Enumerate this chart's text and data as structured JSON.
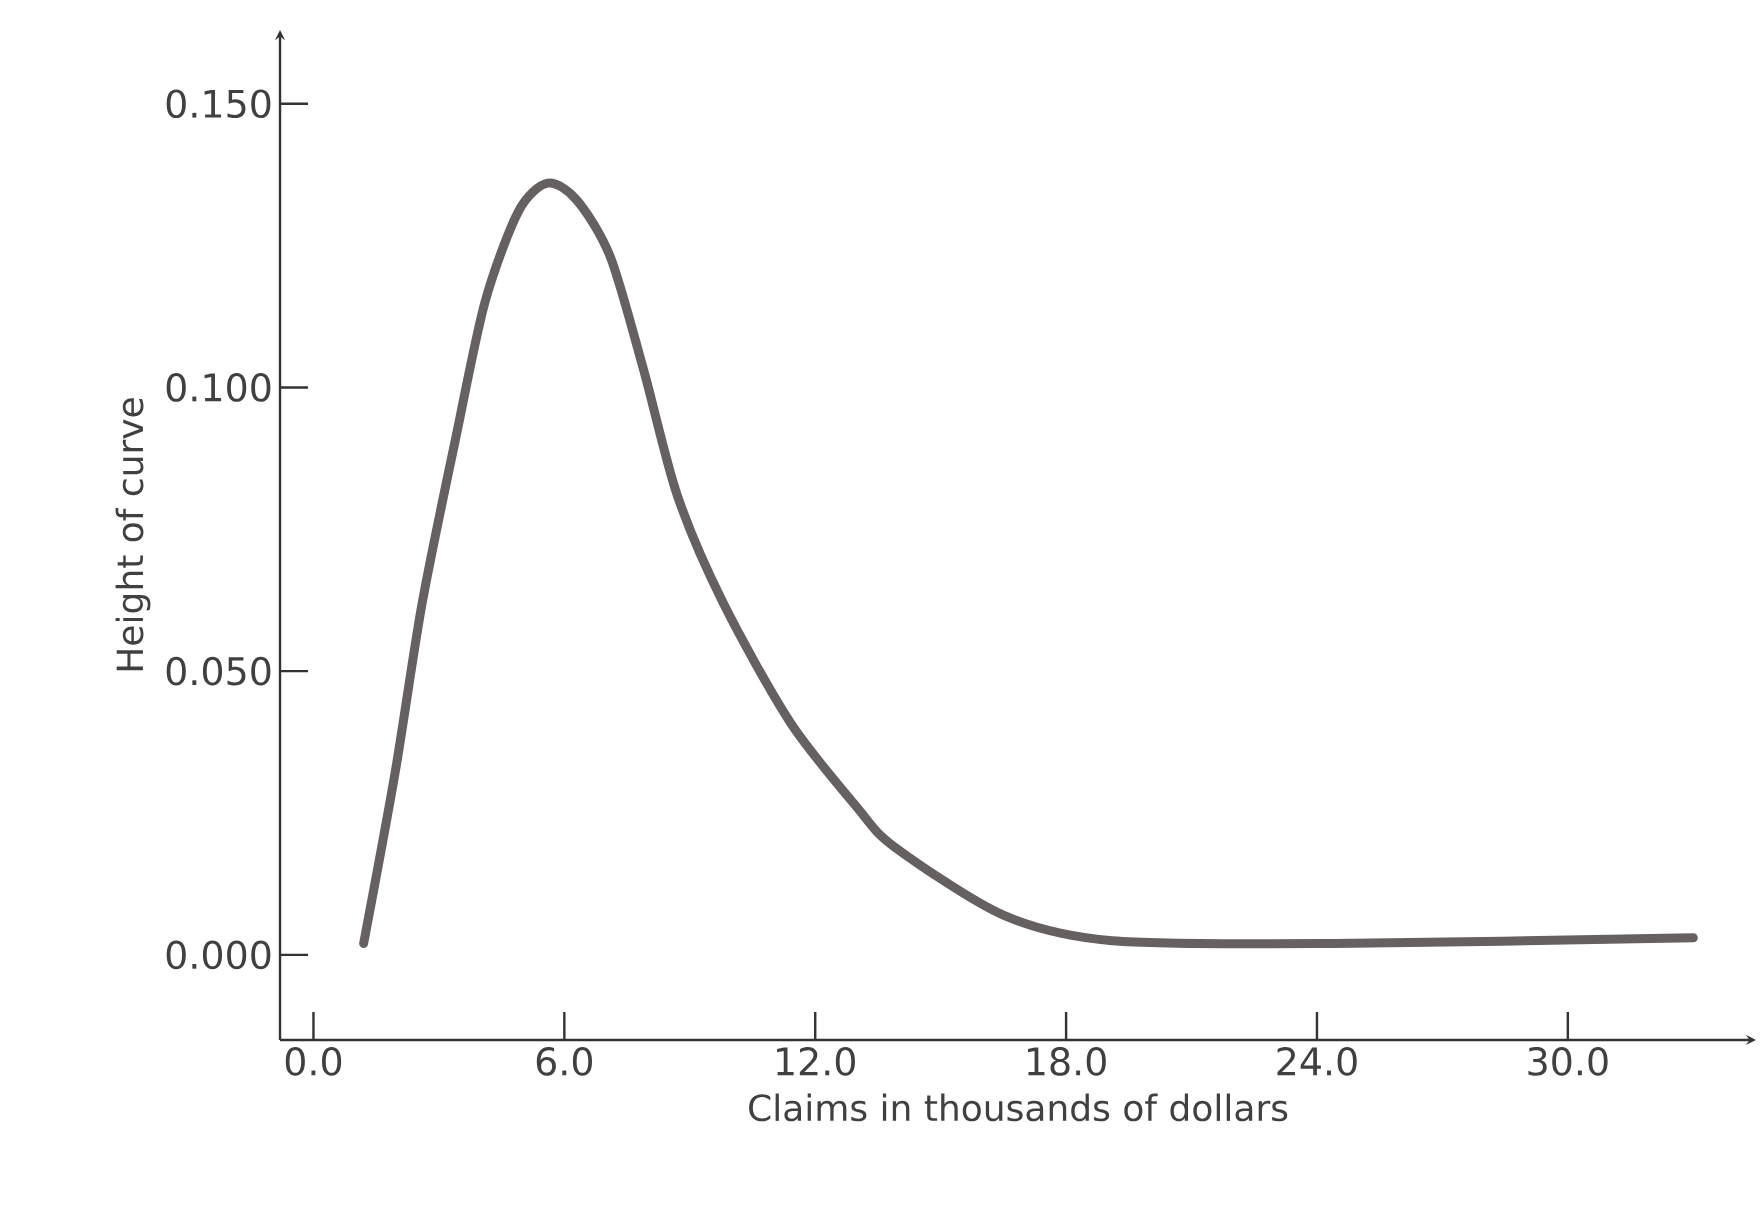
{
  "chart_data": {
    "type": "line",
    "xlabel": "Claims in thousands of dollars",
    "ylabel": "Height of curve",
    "x": [
      1.2,
      1.95,
      2.6,
      3.4,
      4.1,
      4.9,
      5.6,
      6.3,
      7.1,
      7.9,
      8.7,
      9.8,
      11.4,
      13.0,
      13.9,
      16.5,
      19.1,
      24.4,
      33.0
    ],
    "series": [
      {
        "color": "#666060",
        "values": [
          0.002,
          0.032,
          0.062,
          0.091,
          0.115,
          0.131,
          0.136,
          0.133,
          0.123,
          0.103,
          0.081,
          0.062,
          0.041,
          0.026,
          0.019,
          0.007,
          0.0025,
          0.002,
          0.003
        ]
      }
    ],
    "xlim": [
      -0.8,
      34.5
    ],
    "ylim": [
      -0.015,
      0.163
    ],
    "xticks": [
      {
        "value": 0,
        "label": "0.0"
      },
      {
        "value": 6,
        "label": "6.0"
      },
      {
        "value": 12,
        "label": "12.0"
      },
      {
        "value": 18,
        "label": "18.0"
      },
      {
        "value": 24,
        "label": "24.0"
      },
      {
        "value": 30,
        "label": "30.0"
      }
    ],
    "yticks": [
      {
        "value": 0,
        "label": "0.000"
      },
      {
        "value": 0.05,
        "label": "0.050"
      },
      {
        "value": 0.1,
        "label": "0.100"
      },
      {
        "value": 0.15,
        "label": "0.150"
      }
    ],
    "grid": false,
    "marker": "none",
    "line_style": "solid"
  }
}
